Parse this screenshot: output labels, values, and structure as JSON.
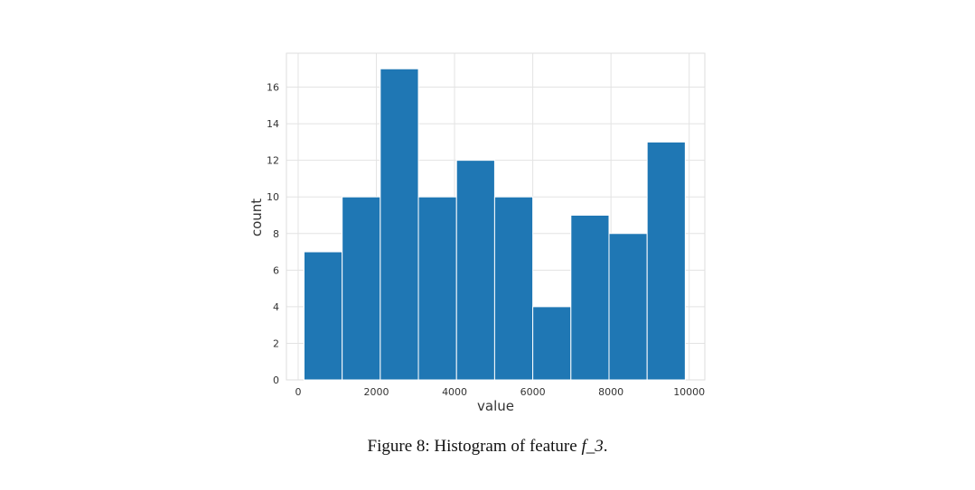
{
  "chart_data": {
    "type": "bar",
    "subtype": "histogram",
    "xlabel": "value",
    "ylabel": "count",
    "bins": [
      {
        "start": 150,
        "end": 1125,
        "count": 7
      },
      {
        "start": 1125,
        "end": 2100,
        "count": 10
      },
      {
        "start": 2100,
        "end": 3075,
        "count": 17
      },
      {
        "start": 3075,
        "end": 4050,
        "count": 10
      },
      {
        "start": 4050,
        "end": 5025,
        "count": 12
      },
      {
        "start": 5025,
        "end": 6000,
        "count": 10
      },
      {
        "start": 6000,
        "end": 6975,
        "count": 4
      },
      {
        "start": 6975,
        "end": 7950,
        "count": 9
      },
      {
        "start": 7950,
        "end": 8925,
        "count": 8
      },
      {
        "start": 8925,
        "end": 9900,
        "count": 13
      }
    ],
    "xlim": [
      -300,
      10400
    ],
    "ylim": [
      0,
      17.85
    ],
    "xticks": [
      0,
      2000,
      4000,
      6000,
      8000,
      10000
    ],
    "yticks": [
      0,
      2,
      4,
      6,
      8,
      10,
      12,
      14,
      16
    ],
    "grid": true,
    "bar_color": "#1f77b4"
  },
  "caption": {
    "prefix": "Figure 8: Histogram of feature ",
    "variable": "f_3",
    "suffix": "."
  }
}
